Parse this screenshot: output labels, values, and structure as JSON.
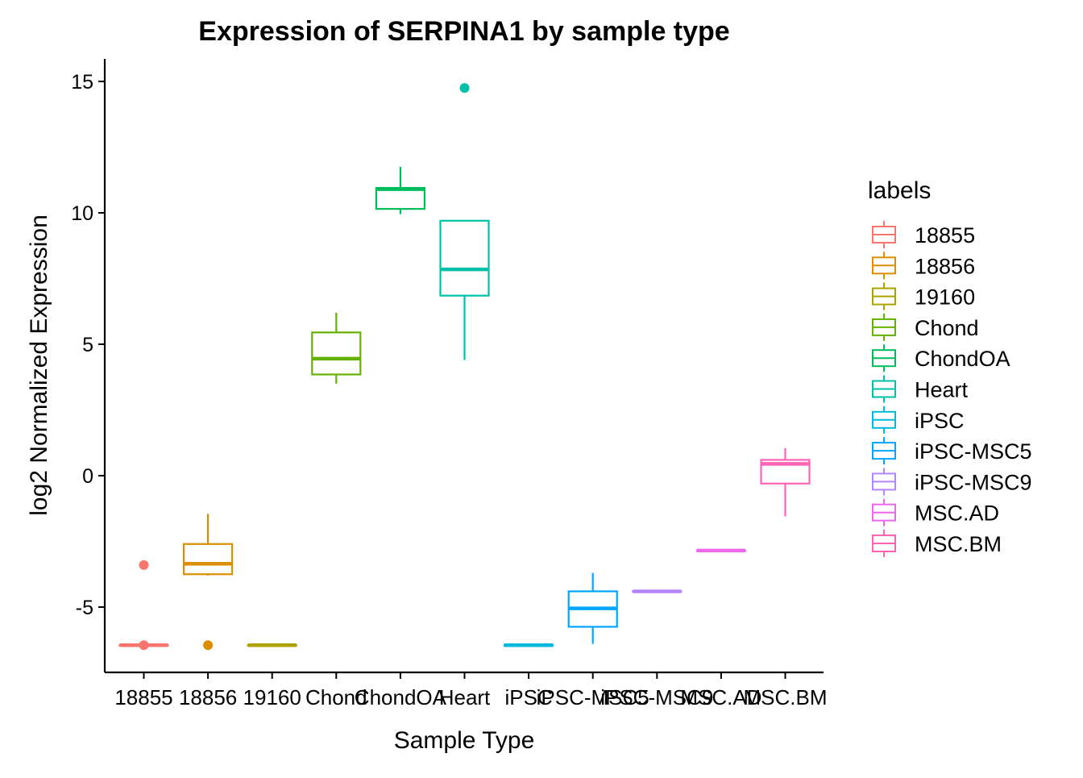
{
  "chart_data": {
    "type": "boxplot",
    "title": "Expression of SERPINA1 by sample type",
    "xlabel": "Sample Type",
    "ylabel": "log2 Normalized Expression",
    "ylim": [
      -7.5,
      15.8
    ],
    "yticks": [
      -5,
      0,
      5,
      10,
      15
    ],
    "ytick_labels": [
      "-5",
      "0",
      "5",
      "10",
      "15"
    ],
    "grid": false,
    "legend": {
      "title": "labels",
      "placement": "right",
      "entries": [
        "18855",
        "18856",
        "19160",
        "Chond",
        "ChondOA",
        "Heart",
        "iPSC",
        "iPSC-MSC5",
        "iPSC-MSC9",
        "MSC.AD",
        "MSC.BM"
      ]
    },
    "categories": [
      "18855",
      "18856",
      "19160",
      "Chond",
      "ChondOA",
      "Heart",
      "iPSC",
      "iPSC-MSC5",
      "iPSC-MSC9",
      "MSC.AD",
      "MSC.BM"
    ],
    "colors": [
      "#F8766D",
      "#DB8E00",
      "#AEA200",
      "#64B200",
      "#00BD5C",
      "#00C1A7",
      "#00BADE",
      "#00A6FF",
      "#B385FF",
      "#EF67EB",
      "#FF63B6"
    ],
    "boxes": [
      {
        "name": "18855",
        "min": -6.45,
        "q1": -6.45,
        "median": -6.45,
        "q3": -6.45,
        "max": -6.45,
        "outliers": [
          -3.4,
          -6.45
        ]
      },
      {
        "name": "18856",
        "min": -3.8,
        "q1": -3.75,
        "median": -3.35,
        "q3": -2.6,
        "max": -1.45,
        "outliers": [
          -6.45
        ]
      },
      {
        "name": "19160",
        "min": -6.45,
        "q1": -6.45,
        "median": -6.45,
        "q3": -6.45,
        "max": -6.45,
        "outliers": []
      },
      {
        "name": "Chond",
        "min": 3.5,
        "q1": 3.85,
        "median": 4.45,
        "q3": 5.45,
        "max": 6.2,
        "outliers": []
      },
      {
        "name": "ChondOA",
        "min": 9.95,
        "q1": 10.15,
        "median": 10.9,
        "q3": 10.95,
        "max": 11.75,
        "outliers": []
      },
      {
        "name": "Heart",
        "min": 4.4,
        "q1": 6.85,
        "median": 7.85,
        "q3": 9.7,
        "max": 9.7,
        "outliers": [
          14.75
        ]
      },
      {
        "name": "iPSC",
        "min": -6.45,
        "q1": -6.45,
        "median": -6.45,
        "q3": -6.45,
        "max": -6.45,
        "outliers": []
      },
      {
        "name": "iPSC-MSC5",
        "min": -6.4,
        "q1": -5.75,
        "median": -5.05,
        "q3": -4.4,
        "max": -3.7,
        "outliers": []
      },
      {
        "name": "iPSC-MSC9",
        "min": -4.4,
        "q1": -4.4,
        "median": -4.4,
        "q3": -4.4,
        "max": -4.4,
        "outliers": []
      },
      {
        "name": "MSC.AD",
        "min": -2.85,
        "q1": -2.85,
        "median": -2.85,
        "q3": -2.85,
        "max": -2.85,
        "outliers": []
      },
      {
        "name": "MSC.BM",
        "min": -1.55,
        "q1": -0.3,
        "median": 0.45,
        "q3": 0.6,
        "max": 1.05,
        "outliers": []
      }
    ]
  }
}
